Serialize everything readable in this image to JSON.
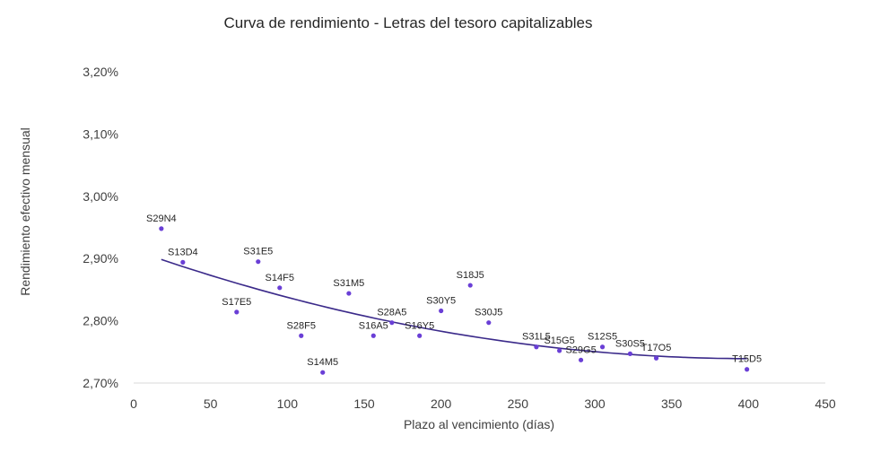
{
  "chart_data": {
    "type": "scatter",
    "title": "Curva de rendimiento - Letras del tesoro capitalizables",
    "xlabel": "Plazo al vencimiento (días)",
    "ylabel": "Rendimiento efectivo mensual",
    "xlim": [
      0,
      450
    ],
    "ylim": [
      2.7,
      3.2
    ],
    "x_ticks": [
      "0",
      "50",
      "100",
      "150",
      "200",
      "250",
      "300",
      "350",
      "400",
      "450"
    ],
    "y_ticks": [
      "2,70%",
      "2,80%",
      "2,90%",
      "3,00%",
      "3,10%",
      "3,20%"
    ],
    "grid": false,
    "marker_color": "#6a3fd6",
    "trendline_color": "#3b2a8a",
    "trendline": "polynomial",
    "points": [
      {
        "label": "S29N4",
        "x": 18,
        "y": 2.948
      },
      {
        "label": "S13D4",
        "x": 32,
        "y": 2.894
      },
      {
        "label": "S17E5",
        "x": 67,
        "y": 2.814
      },
      {
        "label": "S31E5",
        "x": 81,
        "y": 2.895
      },
      {
        "label": "S14F5",
        "x": 95,
        "y": 2.853
      },
      {
        "label": "S28F5",
        "x": 109,
        "y": 2.776
      },
      {
        "label": "S14M5",
        "x": 123,
        "y": 2.717
      },
      {
        "label": "S31M5",
        "x": 140,
        "y": 2.844
      },
      {
        "label": "S16A5",
        "x": 156,
        "y": 2.776
      },
      {
        "label": "S28A5",
        "x": 168,
        "y": 2.797
      },
      {
        "label": "S16Y5",
        "x": 186,
        "y": 2.776
      },
      {
        "label": "S30Y5",
        "x": 200,
        "y": 2.816
      },
      {
        "label": "S18J5",
        "x": 219,
        "y": 2.857
      },
      {
        "label": "S30J5",
        "x": 231,
        "y": 2.797
      },
      {
        "label": "S31L5",
        "x": 262,
        "y": 2.758
      },
      {
        "label": "S15G5",
        "x": 277,
        "y": 2.752
      },
      {
        "label": "S29G5",
        "x": 291,
        "y": 2.737
      },
      {
        "label": "S12S5",
        "x": 305,
        "y": 2.758
      },
      {
        "label": "S30S5",
        "x": 323,
        "y": 2.747
      },
      {
        "label": "T17O5",
        "x": 340,
        "y": 2.74
      },
      {
        "label": "T15D5",
        "x": 399,
        "y": 2.722
      }
    ]
  }
}
